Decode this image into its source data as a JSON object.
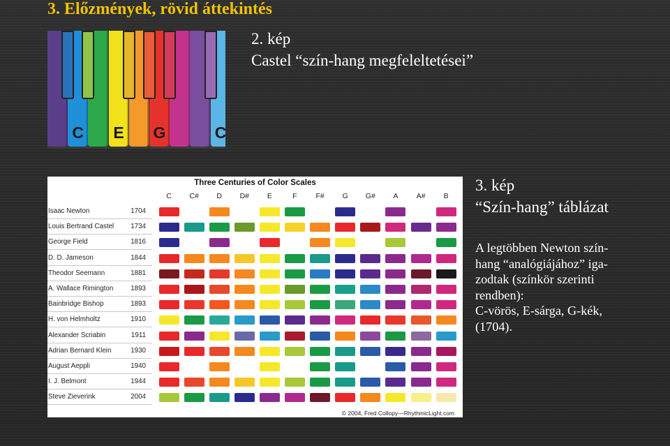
{
  "slide": {
    "title": "3. Előzmények, rövid áttekintés"
  },
  "figure2": {
    "label": "2. kép",
    "caption": "Castel “szín-hang megfeleltetései”",
    "white_keys": [
      {
        "color": "#5a3e8a",
        "letter": ""
      },
      {
        "color": "#1f8fd8",
        "letter": "C"
      },
      {
        "color": "#2da84a",
        "letter": ""
      },
      {
        "color": "#f2e21c",
        "letter": "E"
      },
      {
        "color": "#f59a2a",
        "letter": ""
      },
      {
        "color": "#e5322a",
        "letter": "G"
      },
      {
        "color": "#c2338d",
        "letter": ""
      },
      {
        "color": "#7a4fa0",
        "letter": ""
      },
      {
        "color": "#5bb5e6",
        "letter": "C"
      }
    ],
    "black_keys": [
      {
        "color": "#2a73b8"
      },
      {
        "color": "#8fc64a"
      },
      {
        "color": "#e8b62a"
      },
      {
        "color": "#ec5a3a"
      },
      {
        "color": "#d53a5a"
      },
      {
        "color": "#9b6ab5"
      }
    ]
  },
  "figure3": {
    "label": "3. kép",
    "caption": "“Szín-hang” táblázat",
    "body_lines": [
      "A legtöbben Newton szín-",
      "hang “analógiájához” iga-",
      "zodtak (színkör szerinti",
      "rendben):",
      "C-vörös, E-sárga, G-kék,",
      "(1704)."
    ]
  },
  "table": {
    "title": "Three Centuries of Color Scales",
    "notes": [
      "C",
      "C#",
      "D",
      "D#",
      "E",
      "F",
      "F#",
      "G",
      "G#",
      "A",
      "A#",
      "B"
    ],
    "credit": "© 2004, Fred Collopy—RhythmicLight.com",
    "rows": [
      {
        "name": "Isaac Newton",
        "year": "1704",
        "colors": [
          "#e8282b",
          null,
          "#f5881f",
          null,
          "#f5e82a",
          "#1a9a45",
          null,
          "#2b2b8e",
          null,
          "#8b2a8d",
          null,
          "#d0287e"
        ]
      },
      {
        "name": "Louis Bertrand Castel",
        "year": "1734",
        "colors": [
          "#2b2b8e",
          "#1a9a8a",
          "#1a9a45",
          "#6b9a2a",
          "#f5e82a",
          "#f5d22a",
          "#f5881f",
          "#e8282b",
          "#a8181b",
          "#d0287e",
          "#6b2a8d",
          "#8b2a8d"
        ]
      },
      {
        "name": "George Field",
        "year": "1816",
        "colors": [
          "#2b2b8e",
          null,
          "#8b2a8d",
          null,
          "#e8282b",
          null,
          "#f5881f",
          "#f5e82a",
          null,
          "#a8c83a",
          null,
          "#1a9a45"
        ]
      },
      {
        "name": "D. D. Jameson",
        "year": "1844",
        "colors": [
          "#e8282b",
          "#f5881f",
          "#f5881f",
          "#f5c82a",
          "#f5e82a",
          "#1a9a45",
          "#1a9a8a",
          "#2b2b8e",
          "#5b2a8d",
          "#8b2a8d",
          "#b02a8d",
          "#d0287e"
        ]
      },
      {
        "name": "Theodor Seemann",
        "year": "1881",
        "colors": [
          "#7a1a1e",
          "#c8281b",
          "#e8382b",
          "#f5881f",
          "#f5e82a",
          "#1a9a45",
          "#2a7ac8",
          "#2b2b8e",
          "#5b2a8d",
          "#8b2a8d",
          "#6b1a2e",
          "#1a1a1a"
        ]
      },
      {
        "name": "A. Wallace Rimington",
        "year": "1893",
        "colors": [
          "#e8282b",
          "#a8181b",
          "#e8482b",
          "#f5881f",
          "#f5e82a",
          "#6b9a2a",
          "#1a9a45",
          "#1aa08a",
          "#2b8ac8",
          "#8b2a8d",
          "#b02a6d",
          "#d0287e"
        ]
      },
      {
        "name": "Bainbridge Bishop",
        "year": "1893",
        "colors": [
          "#e8282b",
          "#e8382b",
          "#f5581f",
          "#f5881f",
          "#f5e82a",
          "#a8c83a",
          "#1a9a45",
          "#3aa87a",
          "#2b8ac8",
          "#8b2a8d",
          "#b02a8d",
          "#d0287e"
        ]
      },
      {
        "name": "H. von Helmholtz",
        "year": "1910",
        "colors": [
          "#f5e82a",
          "#1a9a45",
          "#2aa89a",
          "#2a9ac8",
          "#2b5aa8",
          "#5b2a8d",
          "#8b2a8d",
          "#d0287e",
          "#e8282b",
          "#e8382b",
          "#e8582b",
          "#f5881f"
        ]
      },
      {
        "name": "Alexander Scriabin",
        "year": "1911",
        "colors": [
          "#e8282b",
          "#8b2a8d",
          "#f5e82a",
          "#6b6aa8",
          "#2a9ac8",
          "#a81a2e",
          "#2b5aa8",
          "#f5881f",
          "#8b4a9d",
          "#1a9a45",
          "#8b6a9d",
          "#2a9ac8"
        ]
      },
      {
        "name": "Adrian Bernard Klein",
        "year": "1930",
        "colors": [
          "#c8181b",
          "#e8282b",
          "#e8482b",
          "#f5881f",
          "#f5e82a",
          "#a8c83a",
          "#1a9a45",
          "#1a9a8a",
          "#2b5aa8",
          "#3b2a8e",
          "#8b2a8d",
          "#a8185e"
        ]
      },
      {
        "name": "August Aeppli",
        "year": "1940",
        "colors": [
          "#e8282b",
          null,
          "#f5881f",
          null,
          "#f5e82a",
          null,
          "#1a9a45",
          "#1a9a8a",
          null,
          "#2b5aa8",
          "#8b2a8d",
          "#d0287e"
        ]
      },
      {
        "name": "I. J. Belmont",
        "year": "1944",
        "colors": [
          "#e8282b",
          "#e8482b",
          "#f5881f",
          "#f5c82a",
          "#f5e82a",
          "#a8c83a",
          "#1a9a45",
          "#1a9a8a",
          "#2b5aa8",
          "#5b2a8d",
          "#8b2a8d",
          "#d0287e"
        ]
      },
      {
        "name": "Steve Zieverink",
        "year": "2004",
        "colors": [
          "#a8c83a",
          "#1a9a45",
          "#1a9a8a",
          "#2b2b8e",
          "#8b2a8d",
          "#b02a8d",
          "#6b1a2e",
          "#e8282b",
          "#f5881f",
          "#f5e82a",
          "#f5f08a",
          "#f5e8a8"
        ]
      }
    ]
  }
}
